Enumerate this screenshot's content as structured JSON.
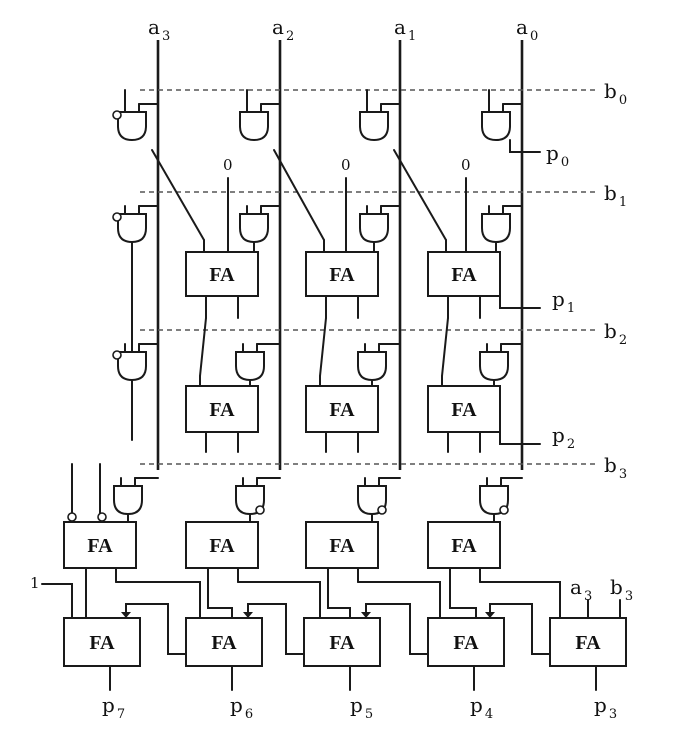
{
  "inputs_a": [
    {
      "base": "a",
      "sub": "3"
    },
    {
      "base": "a",
      "sub": "2"
    },
    {
      "base": "a",
      "sub": "1"
    },
    {
      "base": "a",
      "sub": "0"
    }
  ],
  "inputs_b": [
    {
      "base": "b",
      "sub": "0"
    },
    {
      "base": "b",
      "sub": "1"
    },
    {
      "base": "b",
      "sub": "2"
    },
    {
      "base": "b",
      "sub": "3"
    }
  ],
  "partial_outputs": [
    {
      "base": "p",
      "sub": "0"
    },
    {
      "base": "p",
      "sub": "1"
    },
    {
      "base": "p",
      "sub": "2"
    }
  ],
  "final_outputs": [
    {
      "base": "p",
      "sub": "7"
    },
    {
      "base": "p",
      "sub": "6"
    },
    {
      "base": "p",
      "sub": "5"
    },
    {
      "base": "p",
      "sub": "4"
    },
    {
      "base": "p",
      "sub": "3"
    }
  ],
  "zero_inputs": [
    "0",
    "0",
    "0"
  ],
  "carry_in_label": "1",
  "adder_label": "FA",
  "last_adder_inputs": [
    {
      "base": "a",
      "sub": "3"
    },
    {
      "base": "b",
      "sub": "3"
    }
  ]
}
